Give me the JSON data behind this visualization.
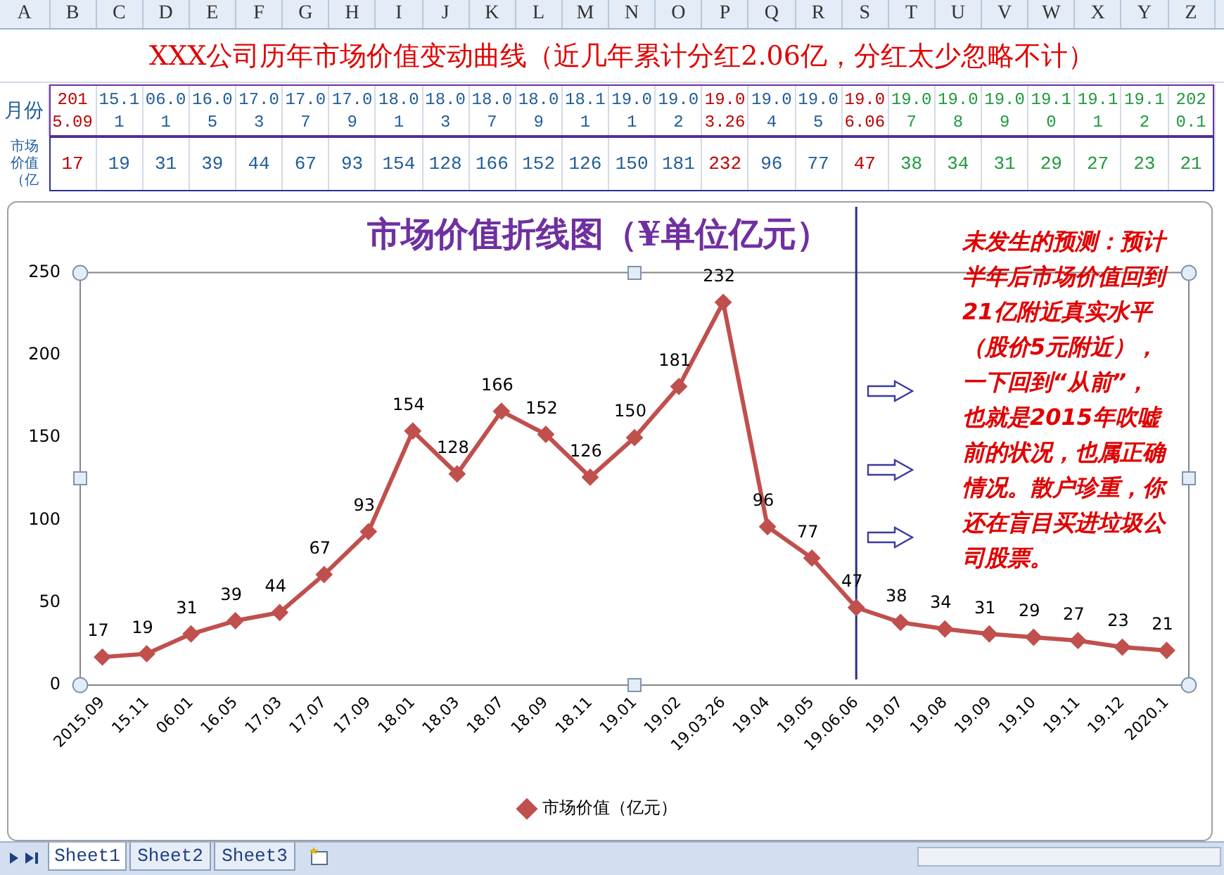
{
  "chart_data": [
    {
      "type": "other",
      "title": "XXX公司历年市场价值变动曲线（近几年累计分红2.06亿，分红太少忽略不计）",
      "categories": [
        "2015.09",
        "15.11",
        "06.01",
        "16.05",
        "17.03",
        "17.07",
        "17.09",
        "18.01",
        "18.03",
        "18.07",
        "18.09",
        "18.11",
        "19.01",
        "19.02",
        "19.03.26",
        "19.04",
        "19.05",
        "19.06.06",
        "19.07",
        "19.08",
        "19.09",
        "19.10",
        "19.11",
        "19.12",
        "2020.1"
      ],
      "values": [
        17,
        19,
        31,
        39,
        44,
        67,
        93,
        154,
        128,
        166,
        152,
        126,
        150,
        181,
        232,
        96,
        77,
        47,
        38,
        34,
        31,
        29,
        27,
        23,
        21
      ],
      "data_labels": true,
      "annotations": [
        "月份",
        "市场价值（亿",
        "A",
        "B",
        "C",
        "D",
        "E",
        "F",
        "G",
        "H",
        "I",
        "J",
        "K",
        "L",
        "M",
        "N",
        "O",
        "P",
        "Q",
        "R",
        "S",
        "T",
        "U",
        "V",
        "W",
        "X",
        "Y",
        "Z"
      ]
    },
    {
      "type": "line",
      "title": "市场价值折线图（¥单位亿元）",
      "categories": [
        "2015.09",
        "15.11",
        "06.01",
        "16.05",
        "17.03",
        "17.07",
        "17.09",
        "18.01",
        "18.03",
        "18.07",
        "18.09",
        "18.11",
        "19.01",
        "19.02",
        "19.03.26",
        "19.04",
        "19.05",
        "19.06.06",
        "19.07",
        "19.08",
        "19.09",
        "19.10",
        "19.11",
        "19.12",
        "2020.1"
      ],
      "series": [
        {
          "name": "市场价值（亿元）",
          "color": "#c0504d",
          "values": [
            17,
            19,
            31,
            39,
            44,
            67,
            93,
            154,
            128,
            166,
            152,
            126,
            150,
            181,
            232,
            96,
            77,
            47,
            38,
            34,
            31,
            29,
            27,
            23,
            21
          ]
        }
      ],
      "ylim": [
        0,
        250
      ],
      "yticks": [
        0,
        50,
        100,
        150,
        200,
        250
      ],
      "grid": false,
      "legend": "bottom",
      "marker": "diamond",
      "line_style": "solid",
      "data_labels": true,
      "ref_lines": [
        {
          "axis": "x",
          "value": "19.06.06",
          "color": "#2b2b8f"
        }
      ],
      "annotations": [
        "未发生的预测：预计半年后市场价值回到21亿附近真实水平（股价5元附近），一下回到“从前”，也就是2015年吹嘘前的状况，也属正确情况。散户珍重，你还在盲目买进垃圾公司股票。",
        "Sheet1",
        "Sheet2",
        "Sheet3"
      ]
    }
  ]
}
